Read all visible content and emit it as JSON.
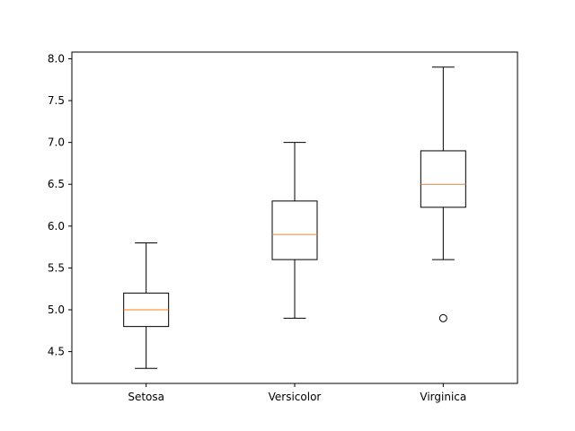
{
  "chart_data": {
    "type": "box",
    "categories": [
      "Setosa",
      "Versicolor",
      "Virginica"
    ],
    "boxes": [
      {
        "label": "Setosa",
        "whisker_low": 4.3,
        "q1": 4.8,
        "median": 5.0,
        "q3": 5.2,
        "whisker_high": 5.8,
        "outliers": []
      },
      {
        "label": "Versicolor",
        "whisker_low": 4.9,
        "q1": 5.6,
        "median": 5.9,
        "q3": 6.3,
        "whisker_high": 7.0,
        "outliers": []
      },
      {
        "label": "Virginica",
        "whisker_low": 5.6,
        "q1": 6.225,
        "median": 6.5,
        "q3": 6.9,
        "whisker_high": 7.9,
        "outliers": [
          4.9
        ]
      }
    ],
    "yticks": [
      "4.5",
      "5.0",
      "5.5",
      "6.0",
      "6.5",
      "7.0",
      "7.5",
      "8.0"
    ],
    "ylim": [
      4.12,
      8.08
    ],
    "title": "",
    "xlabel": "",
    "ylabel": "",
    "grid": false,
    "colors": {
      "box": "#000000",
      "median": "#ff7f0e",
      "outlier": "#000000"
    }
  }
}
